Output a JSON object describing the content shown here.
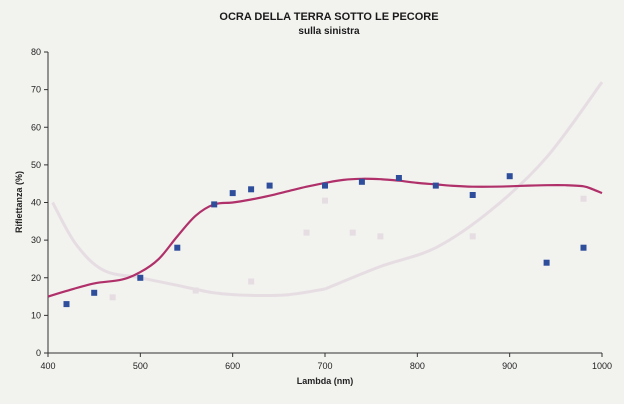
{
  "chart_data": {
    "type": "scatter",
    "title": "OCRA DELLA TERRA SOTTO LE PECORE",
    "subtitle": "sulla sinistra",
    "xlabel": "Lambda (nm)",
    "ylabel": "Riflettanza (%)",
    "xlim": [
      400,
      1000
    ],
    "ylim": [
      0,
      80
    ],
    "x_ticks": [
      400,
      500,
      600,
      700,
      800,
      900,
      1000
    ],
    "y_ticks": [
      0,
      10,
      20,
      30,
      40,
      50,
      60,
      70,
      80
    ],
    "grid": false,
    "colors": {
      "points": "#2e4d9b",
      "curve": "#b0306a",
      "ghost": "#e6dde3"
    },
    "series": [
      {
        "type": "scatter",
        "x": [
          420,
          450,
          500,
          540,
          580,
          600,
          620,
          640,
          700,
          740,
          780,
          820,
          860,
          900,
          940,
          980
        ],
        "y": [
          13,
          16,
          20,
          28,
          39.5,
          42.5,
          43.5,
          44.5,
          44.5,
          45.5,
          46.5,
          44.5,
          42,
          47,
          24,
          28
        ]
      },
      {
        "type": "line",
        "x": [
          400,
          420,
          450,
          480,
          500,
          520,
          540,
          560,
          580,
          600,
          620,
          640,
          660,
          680,
          700,
          720,
          740,
          760,
          780,
          800,
          820,
          840,
          860,
          880,
          900,
          920,
          940,
          960,
          980,
          990,
          1000
        ],
        "y": [
          15,
          16.5,
          18.5,
          19.5,
          21.5,
          25,
          31,
          36.5,
          39.5,
          40,
          40.8,
          41.8,
          43,
          44.2,
          45.2,
          46,
          46.3,
          46.2,
          45.8,
          45.2,
          44.8,
          44.4,
          44.2,
          44.2,
          44.3,
          44.5,
          44.6,
          44.6,
          44.3,
          43.5,
          42.5
        ]
      }
    ]
  }
}
